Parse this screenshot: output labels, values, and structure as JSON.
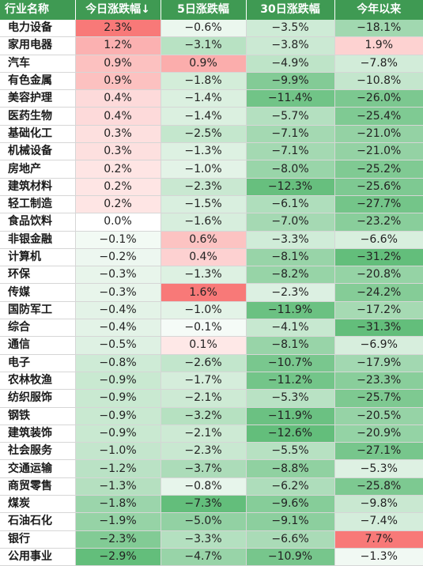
{
  "header": {
    "columns": [
      "行业名称",
      "今日涨跌幅↓",
      "5日涨跌幅",
      "30日涨跌幅",
      "今年以来"
    ]
  },
  "colors": {
    "header_bg": "#3f9a53",
    "positive_light": "#fbdfe0",
    "positive_strong": "#f87978",
    "negative_strong": "#63be7b"
  },
  "rows": [
    {
      "name": "电力设备",
      "d1": "2.3%",
      "d5": "−0.6%",
      "d30": "−3.5%",
      "ytd": "−18.1%"
    },
    {
      "name": "家用电器",
      "d1": "1.2%",
      "d5": "−3.1%",
      "d30": "−3.8%",
      "ytd": "1.9%"
    },
    {
      "name": "汽车",
      "d1": "0.9%",
      "d5": "0.9%",
      "d30": "−4.9%",
      "ytd": "−7.8%"
    },
    {
      "name": "有色金属",
      "d1": "0.9%",
      "d5": "−1.8%",
      "d30": "−9.9%",
      "ytd": "−10.8%"
    },
    {
      "name": "美容护理",
      "d1": "0.4%",
      "d5": "−1.4%",
      "d30": "−11.4%",
      "ytd": "−26.0%"
    },
    {
      "name": "医药生物",
      "d1": "0.4%",
      "d5": "−1.4%",
      "d30": "−5.7%",
      "ytd": "−25.4%"
    },
    {
      "name": "基础化工",
      "d1": "0.3%",
      "d5": "−2.5%",
      "d30": "−7.1%",
      "ytd": "−21.0%"
    },
    {
      "name": "机械设备",
      "d1": "0.3%",
      "d5": "−1.3%",
      "d30": "−7.1%",
      "ytd": "−21.0%"
    },
    {
      "name": "房地产",
      "d1": "0.2%",
      "d5": "−1.0%",
      "d30": "−8.0%",
      "ytd": "−25.2%"
    },
    {
      "name": "建筑材料",
      "d1": "0.2%",
      "d5": "−2.3%",
      "d30": "−12.3%",
      "ytd": "−25.6%"
    },
    {
      "name": "轻工制造",
      "d1": "0.2%",
      "d5": "−1.5%",
      "d30": "−6.1%",
      "ytd": "−27.7%"
    },
    {
      "name": "食品饮料",
      "d1": "0.0%",
      "d5": "−1.6%",
      "d30": "−7.0%",
      "ytd": "−23.2%"
    },
    {
      "name": "非银金融",
      "d1": "−0.1%",
      "d5": "0.6%",
      "d30": "−3.3%",
      "ytd": "−6.6%"
    },
    {
      "name": "计算机",
      "d1": "−0.2%",
      "d5": "0.4%",
      "d30": "−8.1%",
      "ytd": "−31.2%"
    },
    {
      "name": "环保",
      "d1": "−0.3%",
      "d5": "−1.3%",
      "d30": "−8.2%",
      "ytd": "−20.8%"
    },
    {
      "name": "传媒",
      "d1": "−0.3%",
      "d5": "1.6%",
      "d30": "−2.3%",
      "ytd": "−24.2%"
    },
    {
      "name": "国防军工",
      "d1": "−0.4%",
      "d5": "−1.0%",
      "d30": "−11.9%",
      "ytd": "−17.2%"
    },
    {
      "name": "综合",
      "d1": "−0.4%",
      "d5": "−0.1%",
      "d30": "−4.1%",
      "ytd": "−31.3%"
    },
    {
      "name": "通信",
      "d1": "−0.5%",
      "d5": "0.1%",
      "d30": "−8.1%",
      "ytd": "−6.9%"
    },
    {
      "name": "电子",
      "d1": "−0.8%",
      "d5": "−2.6%",
      "d30": "−10.7%",
      "ytd": "−17.9%"
    },
    {
      "name": "农林牧渔",
      "d1": "−0.9%",
      "d5": "−1.7%",
      "d30": "−11.2%",
      "ytd": "−23.3%"
    },
    {
      "name": "纺织服饰",
      "d1": "−0.9%",
      "d5": "−2.1%",
      "d30": "−5.3%",
      "ytd": "−25.7%"
    },
    {
      "name": "钢铁",
      "d1": "−0.9%",
      "d5": "−3.2%",
      "d30": "−11.9%",
      "ytd": "−20.5%"
    },
    {
      "name": "建筑装饰",
      "d1": "−0.9%",
      "d5": "−2.1%",
      "d30": "−12.6%",
      "ytd": "−20.9%"
    },
    {
      "name": "社会服务",
      "d1": "−1.0%",
      "d5": "−2.3%",
      "d30": "−5.5%",
      "ytd": "−27.1%"
    },
    {
      "name": "交通运输",
      "d1": "−1.2%",
      "d5": "−3.7%",
      "d30": "−8.8%",
      "ytd": "−5.3%"
    },
    {
      "name": "商贸零售",
      "d1": "−1.3%",
      "d5": "−0.8%",
      "d30": "−6.2%",
      "ytd": "−25.8%"
    },
    {
      "name": "煤炭",
      "d1": "−1.8%",
      "d5": "−7.3%",
      "d30": "−9.6%",
      "ytd": "−9.8%"
    },
    {
      "name": "石油石化",
      "d1": "−1.9%",
      "d5": "−5.0%",
      "d30": "−9.1%",
      "ytd": "−7.4%"
    },
    {
      "name": "银行",
      "d1": "−2.3%",
      "d5": "−3.3%",
      "d30": "−6.6%",
      "ytd": "7.7%"
    },
    {
      "name": "公用事业",
      "d1": "−2.9%",
      "d5": "−4.7%",
      "d30": "−10.9%",
      "ytd": "−1.3%"
    }
  ]
}
